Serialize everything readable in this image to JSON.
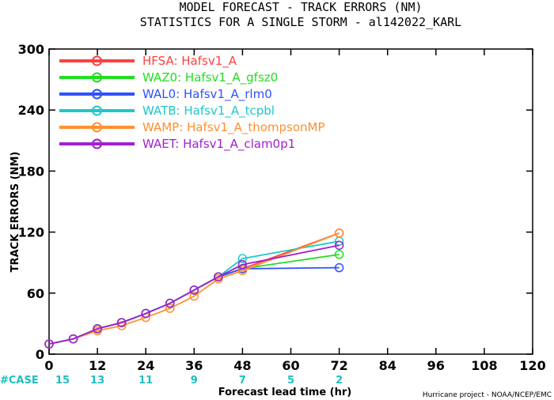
{
  "chart_data": {
    "type": "line",
    "title": "MODEL FORECAST - TRACK ERRORS (NM)",
    "subtitle": "STATISTICS FOR A SINGLE STORM - al142022_KARL",
    "xlabel": "Forecast lead time (hr)",
    "ylabel": "TRACK ERRORS (NM)",
    "xlim": [
      0,
      120
    ],
    "ylim": [
      0,
      300
    ],
    "x_ticks": [
      0,
      12,
      24,
      36,
      48,
      60,
      72,
      84,
      96,
      108,
      120
    ],
    "y_ticks": [
      0,
      60,
      120,
      180,
      240,
      300
    ],
    "y_tick_labels": [
      "0",
      "60",
      "120",
      "180",
      "240",
      "300"
    ],
    "x": [
      0,
      6,
      12,
      18,
      24,
      30,
      36,
      42,
      48,
      72
    ],
    "series": [
      {
        "name": "HFSA:  Hafsv1_A",
        "color": "#ff4040",
        "values": [
          10,
          15,
          25,
          31,
          40,
          50,
          63,
          76,
          84,
          119
        ]
      },
      {
        "name": "WAZ0:  Hafsv1_A_gfsz0",
        "color": "#22dd22",
        "values": [
          10,
          15,
          25,
          31,
          40,
          50,
          63,
          76,
          84,
          98
        ]
      },
      {
        "name": "WAL0:  Hafsv1_A_rlm0",
        "color": "#3050ff",
        "values": [
          10,
          15,
          25,
          31,
          40,
          50,
          63,
          76,
          84,
          85
        ]
      },
      {
        "name": "WATB:  Hafsv1_A_tcpbl",
        "color": "#20c8c8",
        "values": [
          10,
          15,
          25,
          31,
          40,
          50,
          63,
          76,
          94,
          111
        ]
      },
      {
        "name": "WAMP:  Hafsv1_A_thompsonMP",
        "color": "#ff9030",
        "values": [
          10,
          15,
          23,
          28,
          36,
          45,
          57,
          74,
          82,
          119
        ]
      },
      {
        "name": "WAET:  Hafsv1_A_clam0p1",
        "color": "#a020d0",
        "values": [
          10,
          15,
          25,
          31,
          40,
          50,
          63,
          76,
          88,
          107
        ]
      }
    ],
    "case_label": "#CASE",
    "case_counts": [
      {
        "x": 0,
        "n": "15"
      },
      {
        "x": 12,
        "n": "13"
      },
      {
        "x": 24,
        "n": "11"
      },
      {
        "x": 36,
        "n": "9"
      },
      {
        "x": 48,
        "n": "7"
      },
      {
        "x": 60,
        "n": "5"
      },
      {
        "x": 72,
        "n": "2"
      }
    ],
    "legend_position": "top-left",
    "grid": false
  },
  "credit": "Hurricane project - NOAA/NCEP/EMC"
}
